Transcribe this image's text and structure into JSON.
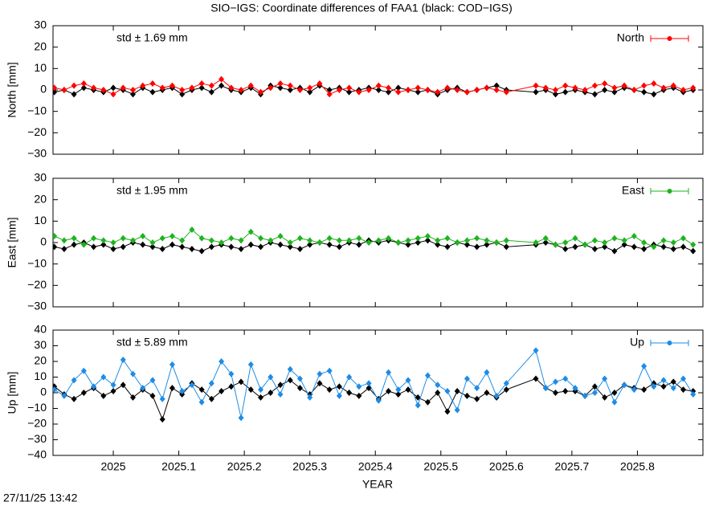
{
  "title": "SIO−IGS: Coordinate differences of FAA1 (black: COD−IGS)",
  "timestamp": "27/11/25 13:42",
  "chart_data": {
    "type": "line",
    "xlabel": "YEAR",
    "xlim": [
      2024.908,
      2025.9
    ],
    "xticks": [
      2025,
      2025.1,
      2025.2,
      2025.3,
      2025.4,
      2025.5,
      2025.6,
      2025.7,
      2025.8
    ],
    "x": [
      2024.91,
      2024.925,
      2024.94,
      2024.955,
      2024.97,
      2024.985,
      2025.0,
      2025.015,
      2025.03,
      2025.045,
      2025.06,
      2025.075,
      2025.09,
      2025.105,
      2025.12,
      2025.135,
      2025.15,
      2025.165,
      2025.18,
      2025.195,
      2025.21,
      2025.225,
      2025.24,
      2025.255,
      2025.27,
      2025.285,
      2025.3,
      2025.315,
      2025.33,
      2025.345,
      2025.36,
      2025.375,
      2025.39,
      2025.405,
      2025.42,
      2025.435,
      2025.45,
      2025.465,
      2025.48,
      2025.495,
      2025.51,
      2025.525,
      2025.54,
      2025.555,
      2025.57,
      2025.585,
      2025.6,
      2025.645,
      2025.66,
      2025.675,
      2025.69,
      2025.705,
      2025.72,
      2025.735,
      2025.75,
      2025.765,
      2025.78,
      2025.795,
      2025.81,
      2025.825,
      2025.84,
      2025.855,
      2025.87,
      2025.885
    ],
    "panels": [
      {
        "ylabel": "North [mm]",
        "annotation": "std ± 1.69 mm",
        "legend": "upper right",
        "ylim": [
          -30,
          30
        ],
        "yticks": [
          {
            "value": -30,
            "label": "−30"
          },
          {
            "value": -20,
            "label": "−20"
          },
          {
            "value": -10,
            "label": "−10"
          },
          0,
          10,
          20,
          30
        ],
        "series": [
          {
            "color": "#000000",
            "values": [
              -1,
              0,
              -2,
              1,
              0,
              -1,
              1,
              0,
              -2,
              1,
              -1,
              0,
              1,
              -2,
              0,
              1,
              -1,
              2,
              0,
              -1,
              1,
              -2,
              2,
              1,
              0,
              1,
              -1,
              2,
              0,
              1,
              -1,
              0,
              1,
              0,
              -1,
              1,
              0,
              -1,
              0,
              -2,
              0,
              1,
              -1,
              0,
              1,
              2,
              0,
              -1,
              0,
              -2,
              -1,
              0,
              -1,
              -2,
              0,
              -1,
              1,
              0,
              -1,
              -2,
              0,
              1,
              -1,
              0
            ]
          },
          {
            "name": "North",
            "color": "#ff0000",
            "values": [
              1,
              0,
              2,
              3,
              1,
              0,
              -2,
              1,
              0,
              2,
              3,
              1,
              2,
              0,
              1,
              3,
              2,
              5,
              1,
              0,
              2,
              -1,
              1,
              3,
              2,
              0,
              1,
              3,
              -2,
              0,
              1,
              -1,
              0,
              2,
              1,
              -1,
              0,
              1,
              0,
              -1,
              1,
              0,
              -1,
              0,
              1,
              0,
              -1,
              2,
              1,
              0,
              2,
              1,
              0,
              2,
              3,
              1,
              2,
              0,
              2,
              3,
              1,
              2,
              0,
              1
            ]
          }
        ]
      },
      {
        "ylabel": "East [mm]",
        "annotation": "std ± 1.95 mm",
        "legend": "upper right",
        "ylim": [
          -30,
          30
        ],
        "yticks": [
          {
            "value": -30,
            "label": "−30"
          },
          {
            "value": -20,
            "label": "−20"
          },
          {
            "value": -10,
            "label": "−10"
          },
          0,
          10,
          20,
          30
        ],
        "series": [
          {
            "color": "#000000",
            "values": [
              -2,
              -3,
              -1,
              0,
              -2,
              -1,
              -3,
              -2,
              0,
              -1,
              -2,
              -3,
              -1,
              -2,
              -3,
              -4,
              -2,
              -1,
              -2,
              -3,
              -1,
              -2,
              0,
              -1,
              -2,
              -3,
              -1,
              0,
              -1,
              -2,
              0,
              -1,
              1,
              0,
              1,
              0,
              -1,
              0,
              1,
              -1,
              -2,
              0,
              -1,
              -2,
              -1,
              0,
              -2,
              -1,
              0,
              -1,
              -3,
              -2,
              -1,
              -3,
              -2,
              -4,
              -1,
              -2,
              -3,
              -1,
              -2,
              -3,
              -2,
              -4
            ]
          },
          {
            "name": "East",
            "color": "#1fb31f",
            "values": [
              3,
              1,
              2,
              -1,
              2,
              1,
              0,
              2,
              1,
              3,
              0,
              2,
              3,
              1,
              6,
              2,
              1,
              0,
              2,
              1,
              5,
              2,
              1,
              3,
              0,
              2,
              1,
              0,
              2,
              1,
              1,
              2,
              0,
              1,
              2,
              0,
              1,
              2,
              3,
              1,
              2,
              0,
              1,
              2,
              1,
              0,
              1,
              0,
              2,
              -1,
              0,
              2,
              -1,
              1,
              0,
              2,
              1,
              3,
              0,
              -2,
              1,
              0,
              2,
              -1
            ]
          }
        ]
      },
      {
        "ylabel": "Up [mm]",
        "annotation": "std ± 5.89 mm",
        "legend": "upper right",
        "ylim": [
          -40,
          40
        ],
        "yticks": [
          {
            "value": -40,
            "label": "−40"
          },
          {
            "value": -30,
            "label": "−30"
          },
          {
            "value": -20,
            "label": "−20"
          },
          {
            "value": -10,
            "label": "−10"
          },
          0,
          10,
          20,
          30,
          40
        ],
        "series": [
          {
            "color": "#000000",
            "values": [
              4,
              -1,
              -4,
              0,
              3,
              -2,
              1,
              5,
              -3,
              2,
              -2,
              -17,
              3,
              -1,
              6,
              2,
              -4,
              1,
              4,
              7,
              2,
              -3,
              0,
              5,
              8,
              3,
              -1,
              6,
              2,
              4,
              0,
              -2,
              3,
              -4,
              1,
              -1,
              2,
              -3,
              -6,
              0,
              -12,
              1,
              -2,
              -4,
              0,
              -3,
              2,
              9,
              3,
              0,
              1,
              1,
              -2,
              4,
              -3,
              0,
              5,
              3,
              2,
              6,
              4,
              7,
              2,
              1
            ]
          },
          {
            "name": "Up",
            "color": "#1e8ce6",
            "values": [
              2,
              -2,
              8,
              14,
              4,
              10,
              5,
              21,
              12,
              3,
              8,
              -4,
              18,
              1,
              5,
              -6,
              6,
              20,
              12,
              -16,
              18,
              2,
              10,
              -1,
              15,
              9,
              -3,
              12,
              14,
              -2,
              10,
              4,
              6,
              -5,
              13,
              2,
              8,
              -8,
              11,
              5,
              1,
              -11,
              9,
              3,
              13,
              -2,
              6,
              27,
              3,
              7,
              9,
              3,
              -2,
              0,
              9,
              -6,
              5,
              2,
              17,
              4,
              8,
              3,
              9,
              -1
            ]
          }
        ]
      }
    ]
  }
}
